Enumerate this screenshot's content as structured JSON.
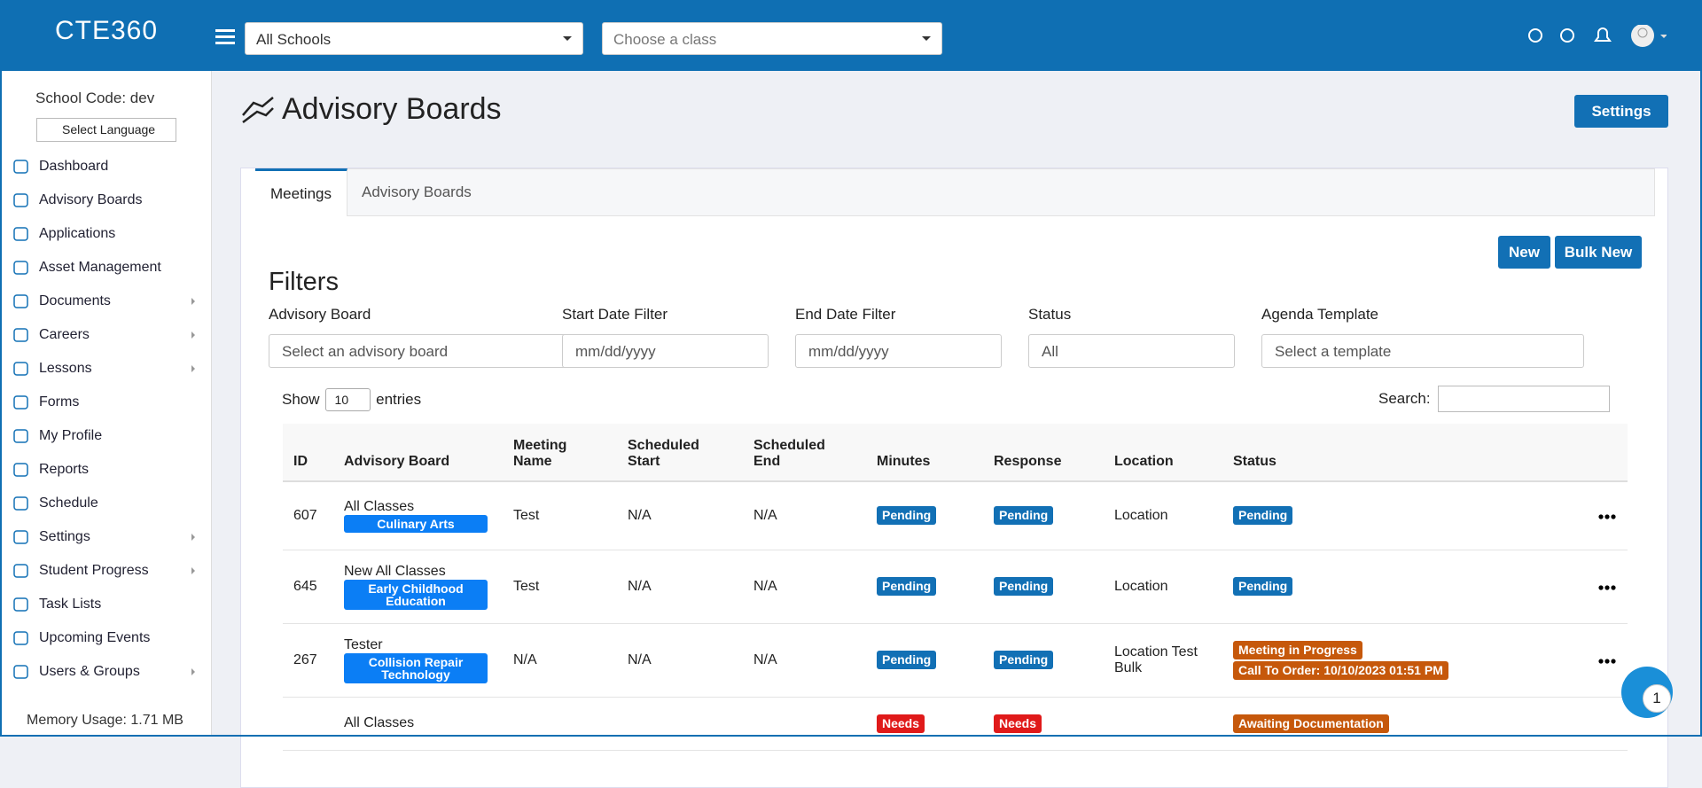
{
  "topbar": {
    "logo": "CTE360",
    "school_select": "All Schools",
    "class_select": "Choose a class"
  },
  "sidebar": {
    "school_code": "School Code: dev",
    "language": "Select Language",
    "menu": [
      {
        "label": "Dashboard",
        "submenu": false
      },
      {
        "label": "Advisory Boards",
        "submenu": false
      },
      {
        "label": "Applications",
        "submenu": false
      },
      {
        "label": "Asset Management",
        "submenu": false
      },
      {
        "label": "Documents",
        "submenu": true
      },
      {
        "label": "Careers",
        "submenu": true
      },
      {
        "label": "Lessons",
        "submenu": true
      },
      {
        "label": "Forms",
        "submenu": false
      },
      {
        "label": "My Profile",
        "submenu": false
      },
      {
        "label": "Reports",
        "submenu": false
      },
      {
        "label": "Schedule",
        "submenu": false
      },
      {
        "label": "Settings",
        "submenu": true
      },
      {
        "label": "Student Progress",
        "submenu": true
      },
      {
        "label": "Task Lists",
        "submenu": false
      },
      {
        "label": "Upcoming Events",
        "submenu": false
      },
      {
        "label": "Users & Groups",
        "submenu": true
      }
    ],
    "memory": "Memory Usage: 1.71 MB"
  },
  "main": {
    "title": "Advisory Boards",
    "settings_button": "Settings",
    "tabs": [
      "Meetings",
      "Advisory Boards"
    ],
    "buttons": [
      "New",
      "Bulk New"
    ],
    "filters": {
      "heading": "Filters",
      "fields": [
        {
          "label": "Advisory Board",
          "value": "Select an advisory board"
        },
        {
          "label": "Start Date Filter",
          "value": "mm/dd/yyyy"
        },
        {
          "label": "End Date Filter",
          "value": "mm/dd/yyyy"
        },
        {
          "label": "Status",
          "value": "All"
        },
        {
          "label": "Agenda Template",
          "value": "Select a template"
        }
      ]
    },
    "table": {
      "show": "Show",
      "entries_value": "10",
      "entries": "entries",
      "search": "Search:",
      "columns": [
        "ID",
        "Advisory Board",
        "Meeting Name",
        "Scheduled Start",
        "Scheduled End",
        "Minutes",
        "Response",
        "Location",
        "Status"
      ],
      "rows": [
        {
          "id": "607",
          "board": "All Classes",
          "class_tag": "Culinary Arts",
          "name": "Test",
          "start": "N/A",
          "end": "N/A",
          "minutes": "Pending",
          "response": "Pending",
          "location": "Location",
          "status": [
            "Pending"
          ]
        },
        {
          "id": "645",
          "board": "New All Classes",
          "class_tag": "Early Childhood Education",
          "name": "Test",
          "start": "N/A",
          "end": "N/A",
          "minutes": "Pending",
          "response": "Pending",
          "location": "Location",
          "status": [
            "Pending"
          ]
        },
        {
          "id": "267",
          "board": "Tester",
          "class_tag": "Collision Repair Technology",
          "name": "N/A",
          "start": "N/A",
          "end": "N/A",
          "minutes": "Pending",
          "response": "Pending",
          "location": "Location Test Bulk",
          "status": [
            "Meeting in Progress",
            "Call To Order: 10/10/2023 01:51 PM"
          ]
        },
        {
          "board": "All Classes",
          "minutes": "Needs",
          "response": "Needs",
          "status": [
            "Awaiting Documentation"
          ]
        }
      ]
    }
  },
  "chat_badge": "1"
}
